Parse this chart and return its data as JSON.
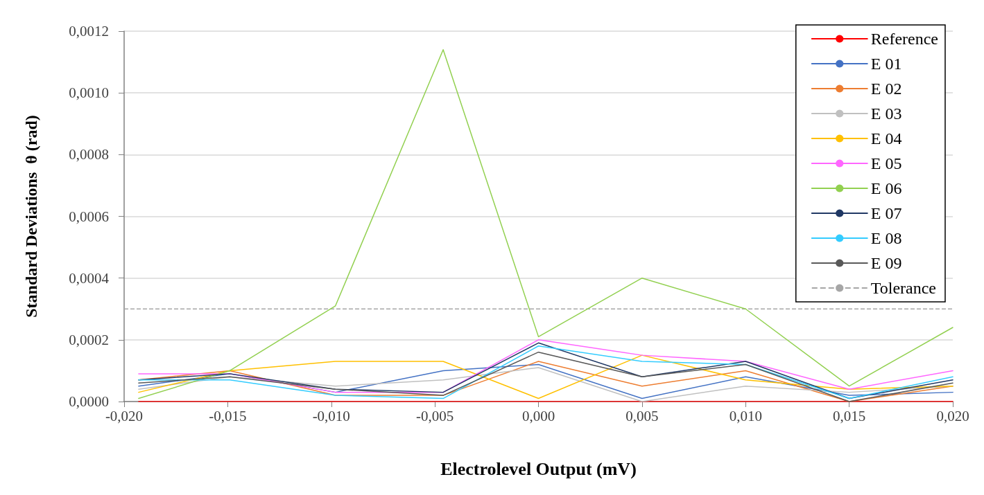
{
  "chart_data": {
    "type": "line",
    "xlabel": "Electrolevel Output (mV)",
    "ylabel": "Standard Deviations  θ (rad)",
    "x": [
      -0.0193,
      -0.0149,
      -0.0098,
      -0.0046,
      0,
      0.005,
      0.01,
      0.015,
      0.02
    ],
    "series": [
      {
        "name": "Reference",
        "color": "#ff0000",
        "values": [
          0,
          0,
          0,
          0,
          0,
          0,
          0,
          0,
          0
        ]
      },
      {
        "name": "E 01",
        "color": "#4472c4",
        "values": [
          5e-05,
          9e-05,
          3e-05,
          0.0001,
          0.00012,
          1e-05,
          8e-05,
          2e-05,
          3e-05
        ]
      },
      {
        "name": "E 02",
        "color": "#ed7d31",
        "values": [
          7e-05,
          0.0001,
          2e-05,
          2e-05,
          0.00013,
          5e-05,
          0.0001,
          0,
          5e-05
        ]
      },
      {
        "name": "E 03",
        "color": "#c0c0c0",
        "values": [
          4e-05,
          8e-05,
          5e-05,
          7e-05,
          0.00011,
          0,
          5e-05,
          3e-05,
          5e-05
        ]
      },
      {
        "name": "E 04",
        "color": "#ffc000",
        "values": [
          3e-05,
          0.0001,
          0.00013,
          0.00013,
          1e-05,
          0.00015,
          7e-05,
          4e-05,
          5e-05
        ]
      },
      {
        "name": "E 05",
        "color": "#ff66ff",
        "values": [
          9e-05,
          9e-05,
          3e-05,
          3e-05,
          0.0002,
          0.00015,
          0.00013,
          4e-05,
          0.0001
        ]
      },
      {
        "name": "E 06",
        "color": "#92d050",
        "values": [
          1e-05,
          0.0001,
          0.00031,
          0.00114,
          0.00021,
          0.0004,
          0.0003,
          5e-05,
          0.00024
        ]
      },
      {
        "name": "E 07",
        "color": "#203864",
        "values": [
          7e-05,
          9e-05,
          4e-05,
          3e-05,
          0.00019,
          8e-05,
          0.00013,
          1e-05,
          7e-05
        ]
      },
      {
        "name": "E 08",
        "color": "#33ccff",
        "values": [
          7e-05,
          7e-05,
          2e-05,
          1e-05,
          0.00018,
          0.00013,
          0.00012,
          1e-05,
          8e-05
        ]
      },
      {
        "name": "E 09",
        "color": "#595959",
        "values": [
          6e-05,
          8e-05,
          4e-05,
          2e-05,
          0.00016,
          8e-05,
          0.00012,
          0,
          6e-05
        ]
      }
    ],
    "ref_lines": [
      {
        "axis": "y",
        "value": 0.0003,
        "label": "Tolerance",
        "color": "#a6a6a6",
        "line_style": "dashed"
      }
    ],
    "xlim": [
      -0.02,
      0.02
    ],
    "xticks": [
      {
        "value": -0.02,
        "label": "-0,020"
      },
      {
        "value": -0.015,
        "label": "-0,015"
      },
      {
        "value": -0.01,
        "label": "-0,010"
      },
      {
        "value": -0.005,
        "label": "-0,005"
      },
      {
        "value": 0,
        "label": "0,000"
      },
      {
        "value": 0.005,
        "label": "0,005"
      },
      {
        "value": 0.01,
        "label": "0,010"
      },
      {
        "value": 0.015,
        "label": "0,015"
      },
      {
        "value": 0.02,
        "label": "0,020"
      }
    ],
    "ylim": [
      0,
      0.0012
    ],
    "yticks": [
      {
        "value": 0,
        "label": "0,0000"
      },
      {
        "value": 0.0002,
        "label": "0,0002"
      },
      {
        "value": 0.0004,
        "label": "0,0004"
      },
      {
        "value": 0.0006,
        "label": "0,0006"
      },
      {
        "value": 0.0008,
        "label": "0,0008"
      },
      {
        "value": 0.001,
        "label": "0,0010"
      },
      {
        "value": 0.0012,
        "label": "0,0012"
      }
    ],
    "grid": "y",
    "legend": "top right",
    "marker": "none",
    "line_style": "solid"
  }
}
